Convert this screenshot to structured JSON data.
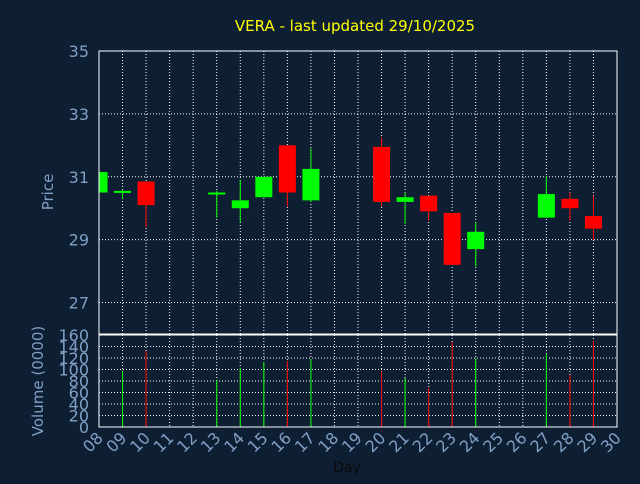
{
  "colors": {
    "background": "#0f1f33",
    "plot_border": "#ffffff",
    "grid": "#ffffff",
    "title": "#ffff00",
    "axis_text": "#7f9fc4",
    "up": "#00ff00",
    "down": "#ff0000",
    "xlabel_text": "#0a0a0a"
  },
  "chart_data": [
    {
      "type": "candlestick",
      "title": "VERA - last updated 29/10/2025",
      "ylabel": "Price",
      "ylim": [
        26,
        35
      ],
      "y_ticks": [
        "27",
        "29",
        "31",
        "33",
        "35"
      ],
      "grid": true,
      "candles": [
        {
          "day": "08",
          "open": 30.5,
          "high": 31.2,
          "low": 30.5,
          "close": 31.15
        },
        {
          "day": "09",
          "open": 30.5,
          "high": 30.6,
          "low": 30.3,
          "close": 30.55
        },
        {
          "day": "10",
          "open": 30.85,
          "high": 30.85,
          "low": 29.4,
          "close": 30.1
        },
        {
          "day": "13",
          "open": 30.45,
          "high": 30.55,
          "low": 29.7,
          "close": 30.5
        },
        {
          "day": "14",
          "open": 30.0,
          "high": 30.9,
          "low": 29.55,
          "close": 30.25
        },
        {
          "day": "15",
          "open": 30.35,
          "high": 31.0,
          "low": 30.35,
          "close": 31.0
        },
        {
          "day": "16",
          "open": 32.0,
          "high": 32.0,
          "low": 30.05,
          "close": 30.5
        },
        {
          "day": "17",
          "open": 30.25,
          "high": 31.9,
          "low": 30.2,
          "close": 31.25
        },
        {
          "day": "20",
          "open": 31.95,
          "high": 32.25,
          "low": 30.05,
          "close": 30.2
        },
        {
          "day": "21",
          "open": 30.2,
          "high": 30.5,
          "low": 29.5,
          "close": 30.35
        },
        {
          "day": "22",
          "open": 30.4,
          "high": 30.4,
          "low": 29.6,
          "close": 29.9
        },
        {
          "day": "23",
          "open": 29.85,
          "high": 29.85,
          "low": 28.2,
          "close": 28.2
        },
        {
          "day": "24",
          "open": 28.7,
          "high": 29.55,
          "low": 28.15,
          "close": 29.25
        },
        {
          "day": "27",
          "open": 29.7,
          "high": 31.0,
          "low": 29.7,
          "close": 30.45
        },
        {
          "day": "28",
          "open": 30.3,
          "high": 30.5,
          "low": 29.6,
          "close": 30.0
        },
        {
          "day": "29",
          "open": 29.75,
          "high": 30.4,
          "low": 29.0,
          "close": 29.35
        }
      ]
    },
    {
      "type": "bar",
      "ylabel": "Volume (0000)",
      "xlabel": "Day",
      "ylim": [
        0,
        160
      ],
      "y_ticks": [
        "0",
        "20",
        "40",
        "60",
        "80",
        "100",
        "120",
        "140",
        "160"
      ],
      "x_ticks": [
        "08",
        "09",
        "10",
        "11",
        "12",
        "13",
        "14",
        "15",
        "16",
        "17",
        "18",
        "19",
        "20",
        "21",
        "22",
        "23",
        "24",
        "25",
        "26",
        "27",
        "28",
        "29",
        "30"
      ],
      "grid": true,
      "bars": [
        {
          "day": "09",
          "value": 98,
          "direction": "up"
        },
        {
          "day": "10",
          "value": 132,
          "direction": "down"
        },
        {
          "day": "13",
          "value": 82,
          "direction": "up"
        },
        {
          "day": "14",
          "value": 103,
          "direction": "up"
        },
        {
          "day": "15",
          "value": 113,
          "direction": "up"
        },
        {
          "day": "16",
          "value": 115,
          "direction": "down"
        },
        {
          "day": "17",
          "value": 118,
          "direction": "up"
        },
        {
          "day": "20",
          "value": 97,
          "direction": "down"
        },
        {
          "day": "21",
          "value": 85,
          "direction": "up"
        },
        {
          "day": "22",
          "value": 68,
          "direction": "down"
        },
        {
          "day": "23",
          "value": 148,
          "direction": "down"
        },
        {
          "day": "24",
          "value": 119,
          "direction": "up"
        },
        {
          "day": "27",
          "value": 128,
          "direction": "up"
        },
        {
          "day": "28",
          "value": 90,
          "direction": "down"
        },
        {
          "day": "29",
          "value": 150,
          "direction": "down"
        }
      ]
    }
  ]
}
